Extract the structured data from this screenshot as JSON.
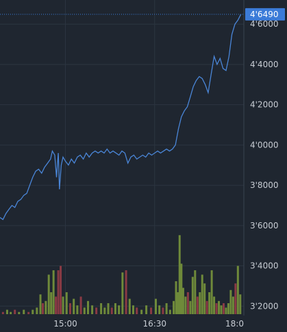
{
  "chart_data": {
    "type": "line",
    "title": "",
    "xlabel": "",
    "ylabel": "",
    "x_ticks": [
      "15:00",
      "16:30",
      "18:0"
    ],
    "y_ticks": [
      "3'2000",
      "3'4000",
      "3'6000",
      "3'8000",
      "4'0000",
      "4'2000",
      "4'4000",
      "4'6000"
    ],
    "y_tick_values": [
      3.2,
      3.4,
      3.6,
      3.8,
      4.0,
      4.2,
      4.4,
      4.6
    ],
    "ylim": [
      3.16,
      4.72
    ],
    "xlim_hours": [
      13.9,
      18.0
    ],
    "last_value_label": "4'6490",
    "last_value": 4.649,
    "grid": true,
    "colors": {
      "background": "#1f2630",
      "grid": "#2c3540",
      "line": "#4a86d8",
      "last_label_bg": "#3b7bd8",
      "volume_up": "#6f8a3a",
      "volume_down": "#8a3a44",
      "tick_text": "#c8cdd4"
    },
    "series": [
      {
        "values": [
          [
            13.9,
            3.64
          ],
          [
            13.95,
            3.63
          ],
          [
            14.0,
            3.66
          ],
          [
            14.05,
            3.68
          ],
          [
            14.1,
            3.7
          ],
          [
            14.15,
            3.69
          ],
          [
            14.2,
            3.72
          ],
          [
            14.25,
            3.73
          ],
          [
            14.3,
            3.75
          ],
          [
            14.35,
            3.76
          ],
          [
            14.4,
            3.8
          ],
          [
            14.45,
            3.84
          ],
          [
            14.5,
            3.87
          ],
          [
            14.55,
            3.88
          ],
          [
            14.6,
            3.86
          ],
          [
            14.65,
            3.89
          ],
          [
            14.7,
            3.91
          ],
          [
            14.75,
            3.93
          ],
          [
            14.78,
            3.97
          ],
          [
            14.82,
            3.95
          ],
          [
            14.85,
            3.84
          ],
          [
            14.88,
            3.96
          ],
          [
            14.9,
            3.78
          ],
          [
            14.93,
            3.9
          ],
          [
            14.96,
            3.94
          ],
          [
            15.0,
            3.92
          ],
          [
            15.05,
            3.9
          ],
          [
            15.1,
            3.93
          ],
          [
            15.15,
            3.91
          ],
          [
            15.2,
            3.94
          ],
          [
            15.25,
            3.95
          ],
          [
            15.3,
            3.93
          ],
          [
            15.35,
            3.96
          ],
          [
            15.4,
            3.94
          ],
          [
            15.45,
            3.96
          ],
          [
            15.5,
            3.97
          ],
          [
            15.55,
            3.96
          ],
          [
            15.6,
            3.97
          ],
          [
            15.65,
            3.96
          ],
          [
            15.7,
            3.98
          ],
          [
            15.75,
            3.96
          ],
          [
            15.8,
            3.97
          ],
          [
            15.85,
            3.96
          ],
          [
            15.9,
            3.95
          ],
          [
            15.95,
            3.97
          ],
          [
            16.0,
            3.96
          ],
          [
            16.05,
            3.91
          ],
          [
            16.1,
            3.94
          ],
          [
            16.15,
            3.95
          ],
          [
            16.2,
            3.93
          ],
          [
            16.25,
            3.94
          ],
          [
            16.3,
            3.95
          ],
          [
            16.35,
            3.94
          ],
          [
            16.4,
            3.96
          ],
          [
            16.45,
            3.95
          ],
          [
            16.5,
            3.96
          ],
          [
            16.55,
            3.97
          ],
          [
            16.6,
            3.96
          ],
          [
            16.65,
            3.97
          ],
          [
            16.7,
            3.98
          ],
          [
            16.75,
            3.97
          ],
          [
            16.8,
            3.98
          ],
          [
            16.85,
            4.0
          ],
          [
            16.9,
            4.08
          ],
          [
            16.95,
            4.14
          ],
          [
            17.0,
            4.17
          ],
          [
            17.05,
            4.19
          ],
          [
            17.1,
            4.24
          ],
          [
            17.15,
            4.29
          ],
          [
            17.2,
            4.32
          ],
          [
            17.25,
            4.34
          ],
          [
            17.3,
            4.33
          ],
          [
            17.35,
            4.3
          ],
          [
            17.4,
            4.26
          ],
          [
            17.45,
            4.35
          ],
          [
            17.5,
            4.44
          ],
          [
            17.55,
            4.4
          ],
          [
            17.6,
            4.43
          ],
          [
            17.65,
            4.38
          ],
          [
            17.7,
            4.37
          ],
          [
            17.75,
            4.44
          ],
          [
            17.8,
            4.55
          ],
          [
            17.85,
            4.6
          ],
          [
            17.9,
            4.62
          ],
          [
            17.95,
            4.649
          ]
        ]
      },
      {
        "name": "volume",
        "values": [
          [
            13.95,
            0.01,
            "d"
          ],
          [
            14.02,
            0.02,
            "u"
          ],
          [
            14.08,
            0.01,
            "u"
          ],
          [
            14.15,
            0.02,
            "d"
          ],
          [
            14.22,
            0.01,
            "u"
          ],
          [
            14.3,
            0.02,
            "u"
          ],
          [
            14.38,
            0.01,
            "d"
          ],
          [
            14.45,
            0.02,
            "u"
          ],
          [
            14.52,
            0.03,
            "u"
          ],
          [
            14.58,
            0.09,
            "u"
          ],
          [
            14.62,
            0.05,
            "d"
          ],
          [
            14.67,
            0.06,
            "u"
          ],
          [
            14.72,
            0.18,
            "u"
          ],
          [
            14.76,
            0.1,
            "u"
          ],
          [
            14.8,
            0.2,
            "u"
          ],
          [
            14.84,
            0.08,
            "d"
          ],
          [
            14.88,
            0.2,
            "d"
          ],
          [
            14.92,
            0.22,
            "d"
          ],
          [
            14.96,
            0.08,
            "u"
          ],
          [
            15.02,
            0.1,
            "u"
          ],
          [
            15.08,
            0.05,
            "d"
          ],
          [
            15.14,
            0.07,
            "u"
          ],
          [
            15.2,
            0.04,
            "u"
          ],
          [
            15.26,
            0.08,
            "d"
          ],
          [
            15.32,
            0.03,
            "u"
          ],
          [
            15.38,
            0.06,
            "u"
          ],
          [
            15.45,
            0.04,
            "u"
          ],
          [
            15.52,
            0.03,
            "d"
          ],
          [
            15.6,
            0.05,
            "u"
          ],
          [
            15.66,
            0.03,
            "u"
          ],
          [
            15.72,
            0.05,
            "u"
          ],
          [
            15.78,
            0.03,
            "d"
          ],
          [
            15.84,
            0.05,
            "u"
          ],
          [
            15.9,
            0.04,
            "u"
          ],
          [
            15.96,
            0.19,
            "u"
          ],
          [
            16.02,
            0.2,
            "d"
          ],
          [
            16.08,
            0.07,
            "u"
          ],
          [
            16.14,
            0.04,
            "u"
          ],
          [
            16.2,
            0.03,
            "d"
          ],
          [
            16.28,
            0.02,
            "u"
          ],
          [
            16.36,
            0.04,
            "u"
          ],
          [
            16.44,
            0.03,
            "d"
          ],
          [
            16.52,
            0.07,
            "u"
          ],
          [
            16.58,
            0.04,
            "u"
          ],
          [
            16.64,
            0.03,
            "d"
          ],
          [
            16.7,
            0.05,
            "u"
          ],
          [
            16.76,
            0.02,
            "u"
          ],
          [
            16.82,
            0.06,
            "u"
          ],
          [
            16.86,
            0.15,
            "u"
          ],
          [
            16.89,
            0.1,
            "u"
          ],
          [
            16.92,
            0.36,
            "u"
          ],
          [
            16.95,
            0.23,
            "u"
          ],
          [
            16.98,
            0.12,
            "u"
          ],
          [
            17.02,
            0.08,
            "u"
          ],
          [
            17.06,
            0.1,
            "d"
          ],
          [
            17.1,
            0.06,
            "u"
          ],
          [
            17.14,
            0.17,
            "u"
          ],
          [
            17.18,
            0.2,
            "u"
          ],
          [
            17.22,
            0.08,
            "d"
          ],
          [
            17.26,
            0.1,
            "u"
          ],
          [
            17.3,
            0.18,
            "u"
          ],
          [
            17.34,
            0.14,
            "u"
          ],
          [
            17.38,
            0.06,
            "d"
          ],
          [
            17.42,
            0.1,
            "u"
          ],
          [
            17.46,
            0.2,
            "u"
          ],
          [
            17.5,
            0.08,
            "u"
          ],
          [
            17.54,
            0.05,
            "d"
          ],
          [
            17.58,
            0.06,
            "u"
          ],
          [
            17.62,
            0.04,
            "u"
          ],
          [
            17.66,
            0.05,
            "d"
          ],
          [
            17.7,
            0.03,
            "u"
          ],
          [
            17.74,
            0.05,
            "u"
          ],
          [
            17.78,
            0.11,
            "u"
          ],
          [
            17.82,
            0.08,
            "u"
          ],
          [
            17.86,
            0.14,
            "d"
          ],
          [
            17.9,
            0.22,
            "u"
          ],
          [
            17.94,
            0.09,
            "u"
          ]
        ]
      }
    ]
  }
}
